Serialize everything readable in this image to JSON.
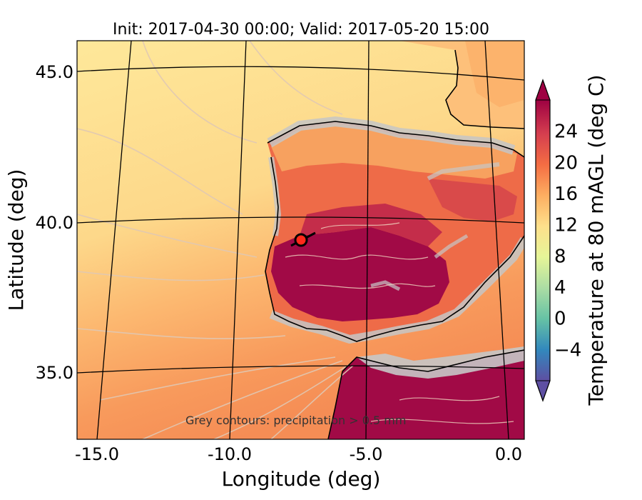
{
  "title": "Init: 2017-04-30 00:00; Valid: 2017-05-20 15:00",
  "xlabel": "Longitude (deg)",
  "ylabel": "Latitude (deg)",
  "xticks": [
    "-15.0",
    "-10.0",
    "-5.0",
    "0.0"
  ],
  "yticks": [
    "45.0",
    "40.0",
    "35.0"
  ],
  "colorbar": {
    "label": "Temperature at 80 mAGL (deg C)",
    "ticks": [
      "−4",
      "0",
      "4",
      "8",
      "12",
      "16",
      "20",
      "24"
    ],
    "range": [
      -8,
      28
    ]
  },
  "note": "Grey contours: precipitation > 0.5 mm",
  "marker": {
    "lon": -7.6,
    "lat": 39.4,
    "color": "#ff2a1a"
  },
  "colors": {
    "ocean_north": "#fee89a",
    "ocean_mid": "#fdc979",
    "ocean_south": "#f7955a",
    "land_hot": "#a10a46",
    "land_warm": "#e44f4a",
    "precip": "#c6c6c6"
  }
}
